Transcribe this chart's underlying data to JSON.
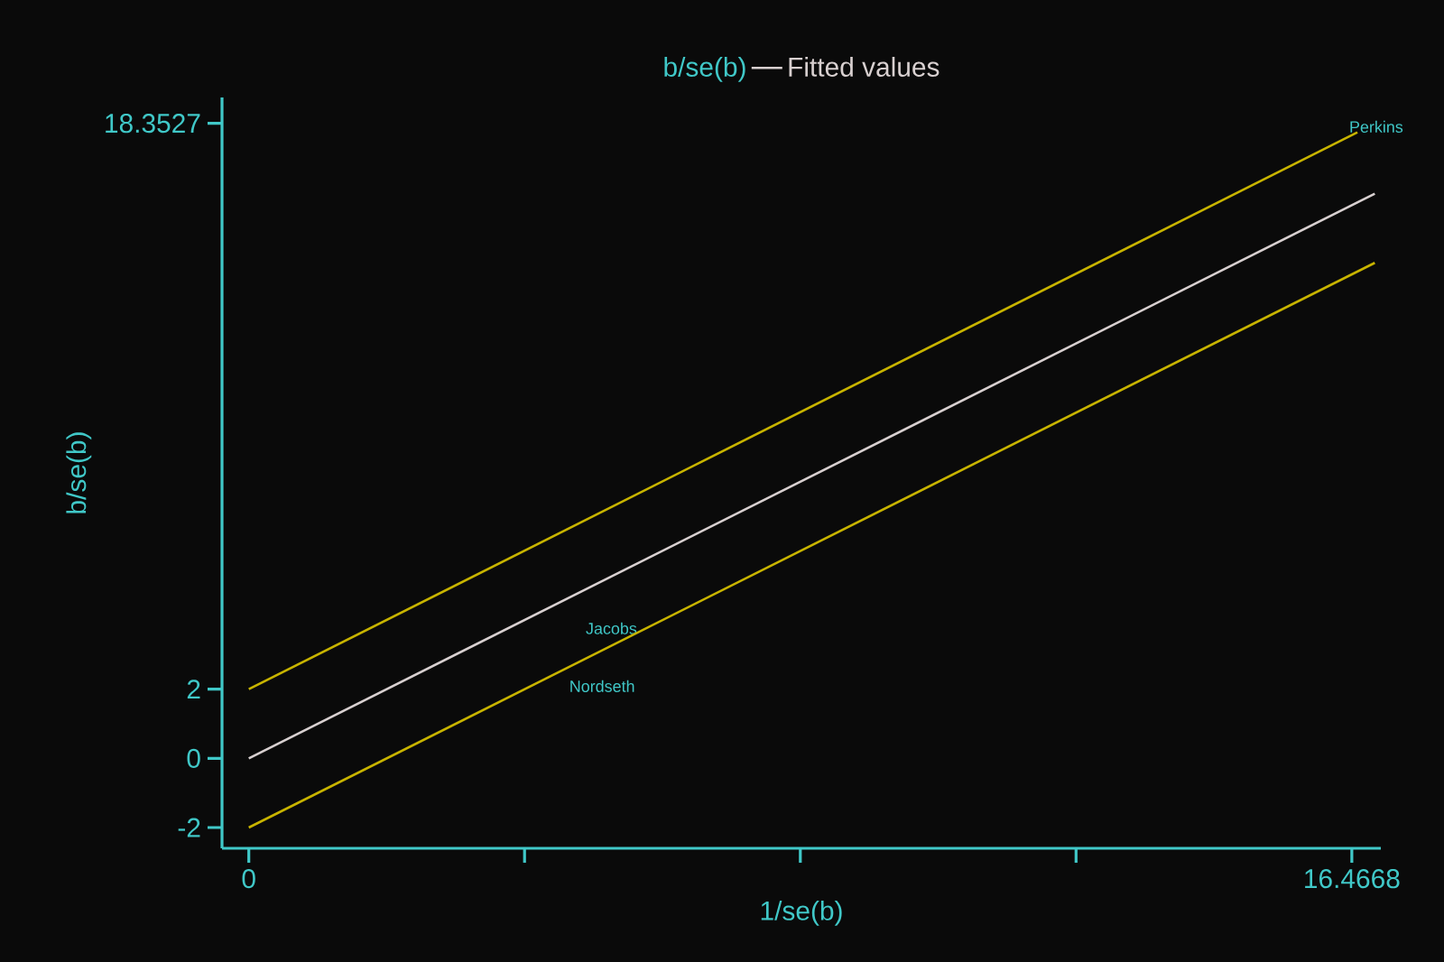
{
  "chart_data": {
    "type": "line",
    "xlabel": "1/se(b)",
    "ylabel": "b/se(b)",
    "xlim": [
      -0.4,
      16.9
    ],
    "ylim": [
      -2.6,
      19.1
    ],
    "xticks": [
      0,
      {
        "value": 4.1167,
        "label": null
      },
      {
        "value": 8.2334,
        "label": null
      },
      {
        "value": 12.3501,
        "label": null
      },
      16.4668
    ],
    "yticks": [
      -2,
      0,
      2,
      18.3527
    ],
    "annotations": [
      "b/se(b)",
      "Jacobs",
      "Nordseth",
      "Perkins"
    ],
    "grid": false,
    "legend": "top",
    "line_style": "solid",
    "series": [
      {
        "name": "Fitted values",
        "color": "#d8d0d0",
        "x": [
          0,
          16.81
        ],
        "values": [
          0,
          16.32
        ]
      },
      {
        "color": "#c8b400",
        "x": [
          0,
          16.55
        ],
        "values": [
          2,
          18.09
        ]
      },
      {
        "color": "#c8b400",
        "x": [
          0,
          16.81
        ],
        "values": [
          -2,
          14.32
        ]
      }
    ]
  }
}
